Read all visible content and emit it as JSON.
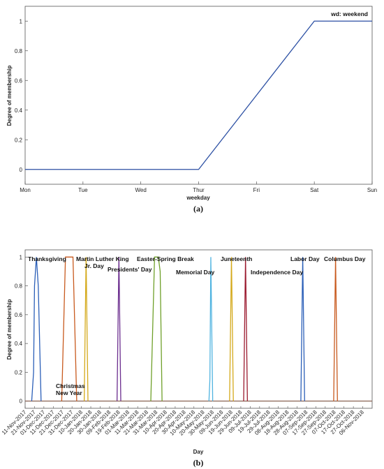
{
  "chart_data": [
    {
      "type": "line",
      "panel": "(a)",
      "x": [
        "Mon",
        "Tue",
        "Wed",
        "Thur",
        "Fri",
        "Sat",
        "Sun"
      ],
      "series": [
        {
          "name": "wd: weekend",
          "color": "#2b4fa3",
          "values": [
            0,
            0,
            0,
            0,
            0.5,
            1,
            1
          ]
        }
      ],
      "xlabel": "weekday",
      "ylabel": "Degree of membership",
      "ylim": [
        -0.1,
        1.1
      ],
      "yticks": [
        "0",
        "0.2",
        "0.4",
        "0.6",
        "0.8",
        "1"
      ],
      "legend": "wd: weekend",
      "legend_position": "top-right"
    },
    {
      "type": "line",
      "panel": "(b)",
      "xlabel": "Day",
      "ylabel": "Degree of membership",
      "ylim": [
        -0.05,
        1.05
      ],
      "yticks": [
        "0",
        "0.2",
        "0.4",
        "0.6",
        "0.8",
        "1"
      ],
      "x_range": [
        "2017-11-11",
        "2018-11-16"
      ],
      "tick_labels": [
        "11-Nov-2017",
        "21-Nov-2017",
        "01-Dec-2017",
        "11-Dec-2017",
        "21-Dec-2017",
        "31-Dec-2017",
        "10-Jan-2018",
        "20-Jan-2018",
        "30-Jan-2018",
        "09-Feb-2018",
        "19-Feb-2018",
        "01-Mar-2018",
        "11-Mar-2018",
        "21-Mar-2018",
        "31-Mar-2018",
        "10-Apr-2018",
        "20-Apr-2018",
        "30-Apr-2018",
        "10-May-2018",
        "20-May-2018",
        "30-May-2018",
        "09-Jun-2018",
        "19-Jun-2018",
        "29-Jun-2018",
        "09-Jul-2018",
        "19-Jul-2018",
        "29-Jul-2018",
        "08-Aug-2018",
        "18-Aug-2018",
        "28-Aug-2018",
        "07-Sep-2018",
        "17-Sep-2018",
        "27-Sep-2018",
        "07-Oct-2018",
        "17-Oct-2018",
        "27-Oct-2018",
        "06-Nov-2018"
      ],
      "holidays": [
        {
          "label": "Thanksgiving",
          "color": "#2b5fb8",
          "points": [
            [
              "2017-11-18",
              0
            ],
            [
              "2017-11-20",
              0.2
            ],
            [
              "2017-11-21",
              0.8
            ],
            [
              "2017-11-23",
              1
            ],
            [
              "2017-11-25",
              0.8
            ],
            [
              "2017-11-28",
              0
            ]
          ]
        },
        {
          "label": "Christmas\nNew Year",
          "color": "#c85a1e",
          "points": [
            [
              "2017-12-20",
              0
            ],
            [
              "2017-12-24",
              1
            ],
            [
              "2018-01-01",
              1
            ],
            [
              "2018-01-05",
              0
            ]
          ]
        },
        {
          "label": "Martin Luther King\nJr. Day",
          "color": "#d4a91a",
          "points": [
            [
              "2018-01-13",
              0
            ],
            [
              "2018-01-15",
              1
            ],
            [
              "2018-01-17",
              0
            ]
          ]
        },
        {
          "label": "Presidents' Day",
          "color": "#6b2d8e",
          "points": [
            [
              "2018-02-17",
              0
            ],
            [
              "2018-02-19",
              1
            ],
            [
              "2018-02-21",
              0
            ]
          ]
        },
        {
          "label": "Easter-Spring Break",
          "color": "#6fa02a",
          "points": [
            [
              "2018-03-25",
              0
            ],
            [
              "2018-03-29",
              1
            ],
            [
              "2018-04-02",
              1
            ],
            [
              "2018-04-04",
              0.9
            ],
            [
              "2018-04-06",
              0
            ]
          ]
        },
        {
          "label": "Memorial Day",
          "color": "#4fb3e0",
          "points": [
            [
              "2018-05-26",
              0
            ],
            [
              "2018-05-27",
              0.15
            ],
            [
              "2018-05-28",
              1
            ],
            [
              "2018-05-30",
              0
            ]
          ]
        },
        {
          "label": "Juneteenth",
          "color": "#d4a91a",
          "points": [
            [
              "2018-06-17",
              0
            ],
            [
              "2018-06-19",
              1
            ],
            [
              "2018-06-21",
              0
            ]
          ]
        },
        {
          "label": "Independence Day",
          "color": "#9b1a2f",
          "points": [
            [
              "2018-07-02",
              0
            ],
            [
              "2018-07-04",
              1
            ],
            [
              "2018-07-06",
              0
            ]
          ]
        },
        {
          "label": "Labor Day",
          "color": "#2b5fb8",
          "points": [
            [
              "2018-09-01",
              0
            ],
            [
              "2018-09-03",
              1
            ],
            [
              "2018-09-05",
              0
            ]
          ]
        },
        {
          "label": "Columbus Day",
          "color": "#c85a1e",
          "points": [
            [
              "2018-10-06",
              0
            ],
            [
              "2018-10-08",
              1
            ],
            [
              "2018-10-10",
              0
            ]
          ]
        }
      ]
    }
  ]
}
